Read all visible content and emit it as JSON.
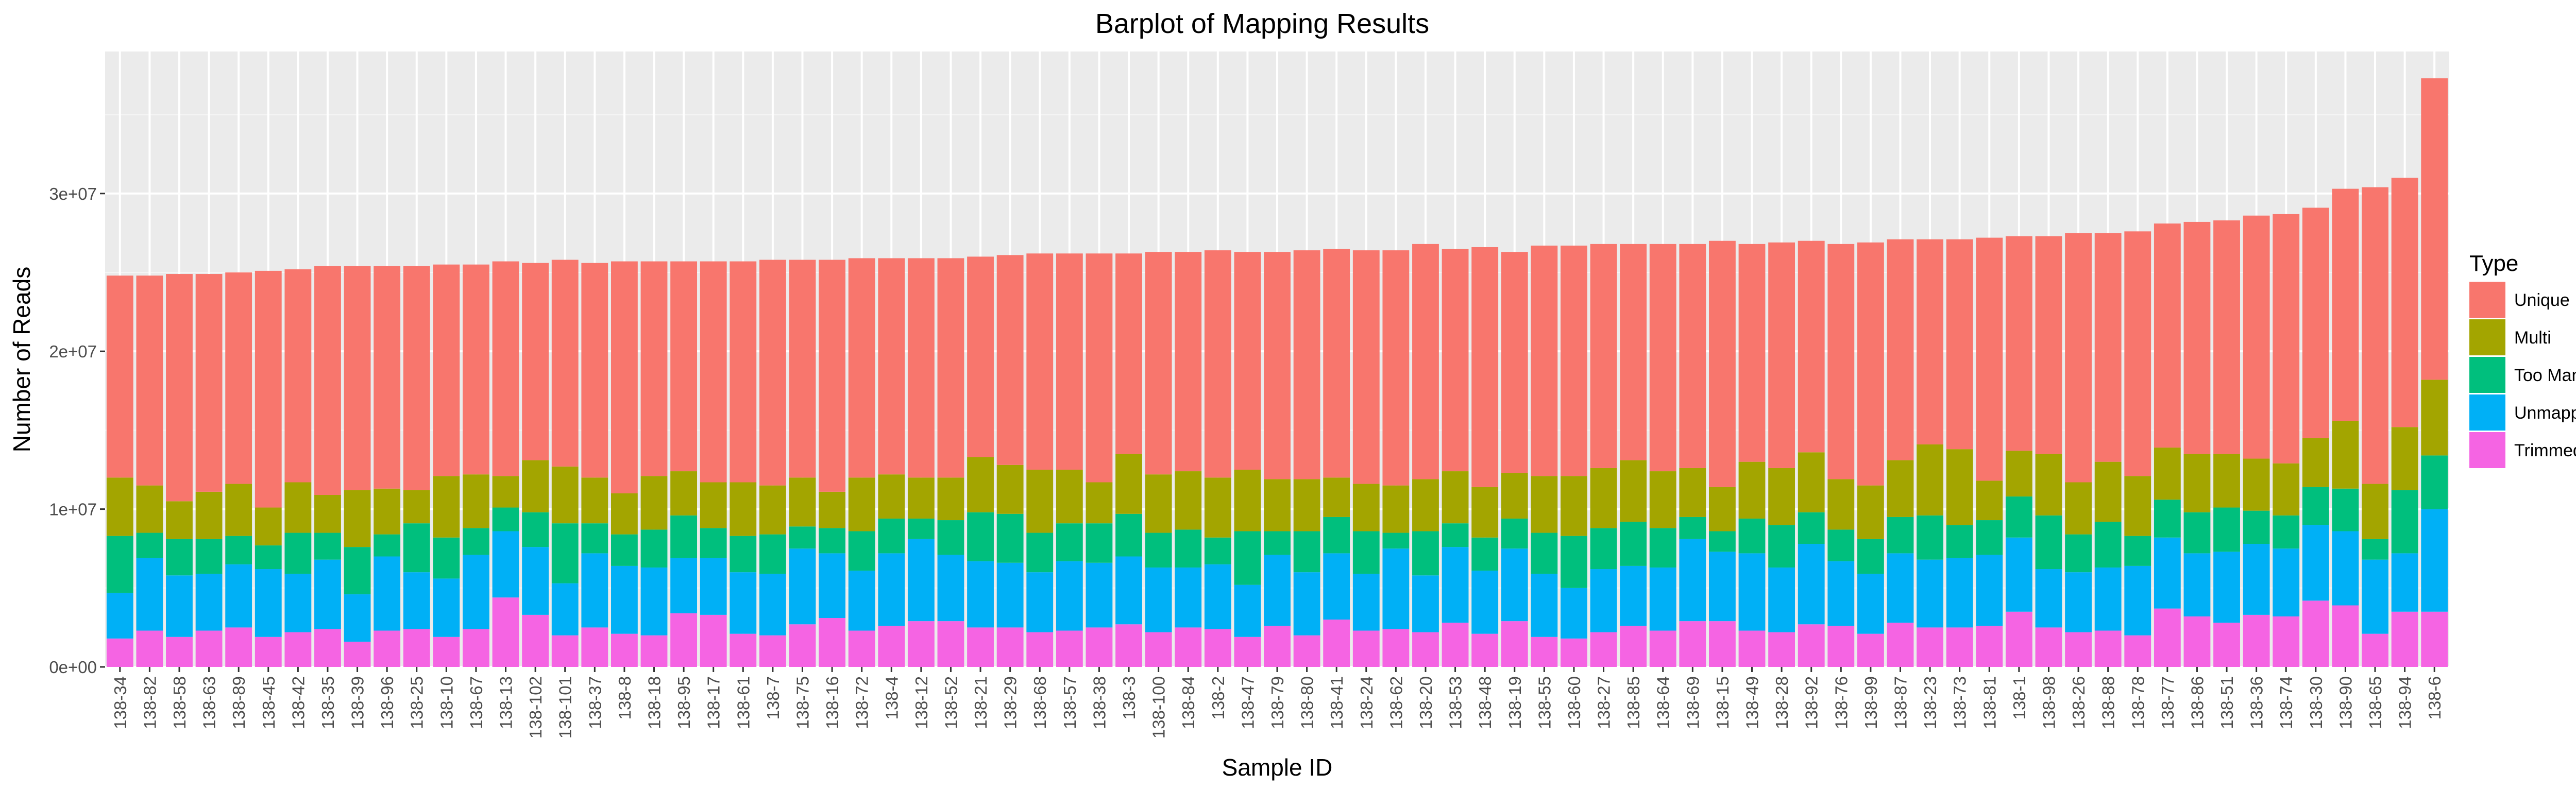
{
  "chart_data": {
    "type": "bar",
    "stacked": true,
    "title": "Barplot of Mapping Results",
    "xlabel": "Sample ID",
    "ylabel": "Number of Reads",
    "ylim": [
      0,
      39000000
    ],
    "yticks": [
      0,
      10000000,
      20000000,
      30000000
    ],
    "ytick_labels": [
      "0e+00",
      "1e+07",
      "2e+07",
      "3e+07"
    ],
    "grid": true,
    "legend": {
      "title": "Type",
      "position": "right"
    },
    "categories": [
      "138-34",
      "138-82",
      "138-58",
      "138-63",
      "138-89",
      "138-45",
      "138-42",
      "138-35",
      "138-39",
      "138-96",
      "138-25",
      "138-10",
      "138-67",
      "138-13",
      "138-102",
      "138-101",
      "138-37",
      "138-8",
      "138-18",
      "138-95",
      "138-17",
      "138-61",
      "138-7",
      "138-75",
      "138-16",
      "138-72",
      "138-4",
      "138-12",
      "138-52",
      "138-21",
      "138-29",
      "138-68",
      "138-57",
      "138-38",
      "138-3",
      "138-100",
      "138-84",
      "138-2",
      "138-47",
      "138-79",
      "138-80",
      "138-41",
      "138-24",
      "138-62",
      "138-20",
      "138-53",
      "138-48",
      "138-19",
      "138-55",
      "138-60",
      "138-27",
      "138-85",
      "138-64",
      "138-69",
      "138-15",
      "138-49",
      "138-28",
      "138-92",
      "138-76",
      "138-99",
      "138-87",
      "138-23",
      "138-73",
      "138-81",
      "138-1",
      "138-98",
      "138-26",
      "138-88",
      "138-78",
      "138-77",
      "138-86",
      "138-51",
      "138-36",
      "138-74",
      "138-30",
      "138-90",
      "138-65",
      "138-94",
      "138-6"
    ],
    "series": [
      {
        "name": "Trimmed Off",
        "color": "#F564E3",
        "values": [
          1800000,
          2300000,
          1900000,
          2300000,
          2500000,
          1900000,
          2200000,
          2400000,
          1600000,
          2300000,
          2400000,
          1900000,
          2400000,
          4400000,
          3300000,
          2000000,
          2500000,
          2100000,
          2000000,
          3400000,
          3300000,
          2100000,
          2000000,
          2700000,
          3100000,
          2300000,
          2600000,
          2900000,
          2900000,
          2500000,
          2500000,
          2200000,
          2300000,
          2500000,
          2700000,
          2200000,
          2500000,
          2400000,
          1900000,
          2600000,
          2000000,
          3000000,
          2300000,
          2400000,
          2200000,
          2800000,
          2100000,
          2900000,
          1900000,
          1800000,
          2200000,
          2600000,
          2300000,
          2900000,
          2900000,
          2300000,
          2200000,
          2700000,
          2600000,
          2100000,
          2800000,
          2500000,
          2500000,
          2600000,
          3500000,
          2500000,
          2200000,
          2300000,
          2000000,
          3700000,
          3200000,
          2800000,
          3300000,
          3200000,
          4200000,
          3900000,
          2100000,
          3500000,
          3500000
        ]
      },
      {
        "name": "Unmapped",
        "color": "#00B0F6",
        "values": [
          2900000,
          4600000,
          3900000,
          3600000,
          4000000,
          4300000,
          3700000,
          4400000,
          3000000,
          4700000,
          3600000,
          3700000,
          4700000,
          4200000,
          4300000,
          3300000,
          4700000,
          4300000,
          4300000,
          3500000,
          3600000,
          3900000,
          3900000,
          4800000,
          4100000,
          3800000,
          4600000,
          5200000,
          4200000,
          4200000,
          4100000,
          3800000,
          4400000,
          4100000,
          4300000,
          4100000,
          3800000,
          4100000,
          3300000,
          4500000,
          4000000,
          4200000,
          3600000,
          5100000,
          3600000,
          4800000,
          4000000,
          4600000,
          4000000,
          3200000,
          4000000,
          3800000,
          4000000,
          5200000,
          4400000,
          4900000,
          4100000,
          5100000,
          4100000,
          3800000,
          4400000,
          4300000,
          4400000,
          4500000,
          4700000,
          3700000,
          3800000,
          4000000,
          4400000,
          4500000,
          4000000,
          4500000,
          4500000,
          4300000,
          4800000,
          4700000,
          4700000,
          3700000,
          6500000
        ]
      },
      {
        "name": "Too Many",
        "color": "#00BF7D",
        "values": [
          3600000,
          1600000,
          2300000,
          2200000,
          1800000,
          1500000,
          2600000,
          1700000,
          3000000,
          1400000,
          3100000,
          2600000,
          1700000,
          1500000,
          2200000,
          3800000,
          1900000,
          2000000,
          2400000,
          2700000,
          1900000,
          2300000,
          2500000,
          1400000,
          1600000,
          2500000,
          2200000,
          1300000,
          2200000,
          3100000,
          3100000,
          2500000,
          2400000,
          2500000,
          2700000,
          2200000,
          2400000,
          1700000,
          3400000,
          1500000,
          2600000,
          2300000,
          2700000,
          1000000,
          2800000,
          1500000,
          2100000,
          1900000,
          2600000,
          3300000,
          2600000,
          2800000,
          2500000,
          1400000,
          1300000,
          2200000,
          2700000,
          2000000,
          2000000,
          2200000,
          2300000,
          2800000,
          2100000,
          2200000,
          2600000,
          3400000,
          2400000,
          2900000,
          1900000,
          2400000,
          2600000,
          2800000,
          2100000,
          2100000,
          2400000,
          2700000,
          1300000,
          4000000,
          3400000
        ]
      },
      {
        "name": "Multi",
        "color": "#A3A500",
        "values": [
          3700000,
          3000000,
          2400000,
          3000000,
          3300000,
          2400000,
          3200000,
          2400000,
          3600000,
          2900000,
          2100000,
          3900000,
          3400000,
          2000000,
          3300000,
          3600000,
          2900000,
          2600000,
          3400000,
          2800000,
          2900000,
          3400000,
          3100000,
          3100000,
          2300000,
          3400000,
          2800000,
          2600000,
          2700000,
          3500000,
          3100000,
          4000000,
          3400000,
          2600000,
          3800000,
          3700000,
          3700000,
          3800000,
          3900000,
          3300000,
          3300000,
          2500000,
          3000000,
          3000000,
          3300000,
          3300000,
          3200000,
          2900000,
          3600000,
          3800000,
          3800000,
          3900000,
          3600000,
          3100000,
          2800000,
          3600000,
          3600000,
          3800000,
          3200000,
          3400000,
          3600000,
          4500000,
          4800000,
          2500000,
          2900000,
          3900000,
          3300000,
          3800000,
          3800000,
          3300000,
          3700000,
          3400000,
          3300000,
          3300000,
          3100000,
          4300000,
          3500000,
          4000000,
          4800000
        ]
      },
      {
        "name": "Unique",
        "color": "#F8766D",
        "values": [
          12800000,
          13300000,
          14400000,
          13800000,
          13400000,
          15000000,
          13500000,
          14500000,
          14200000,
          14100000,
          14200000,
          13400000,
          13300000,
          13600000,
          12500000,
          13100000,
          13600000,
          14700000,
          13600000,
          13300000,
          14000000,
          14000000,
          14300000,
          13800000,
          14700000,
          13900000,
          13700000,
          13900000,
          13900000,
          12700000,
          13300000,
          13700000,
          13700000,
          14500000,
          12700000,
          14100000,
          13900000,
          14400000,
          13800000,
          14400000,
          14500000,
          14500000,
          14800000,
          14900000,
          14900000,
          14100000,
          15200000,
          14000000,
          14600000,
          14600000,
          14200000,
          13700000,
          14400000,
          14200000,
          15600000,
          13800000,
          14300000,
          13400000,
          14900000,
          15400000,
          14000000,
          13000000,
          13300000,
          15400000,
          13600000,
          13800000,
          15800000,
          14500000,
          15500000,
          14200000,
          14700000,
          14800000,
          15400000,
          15800000,
          14600000,
          14700000,
          18800000,
          15800000,
          19100000
        ]
      }
    ]
  }
}
